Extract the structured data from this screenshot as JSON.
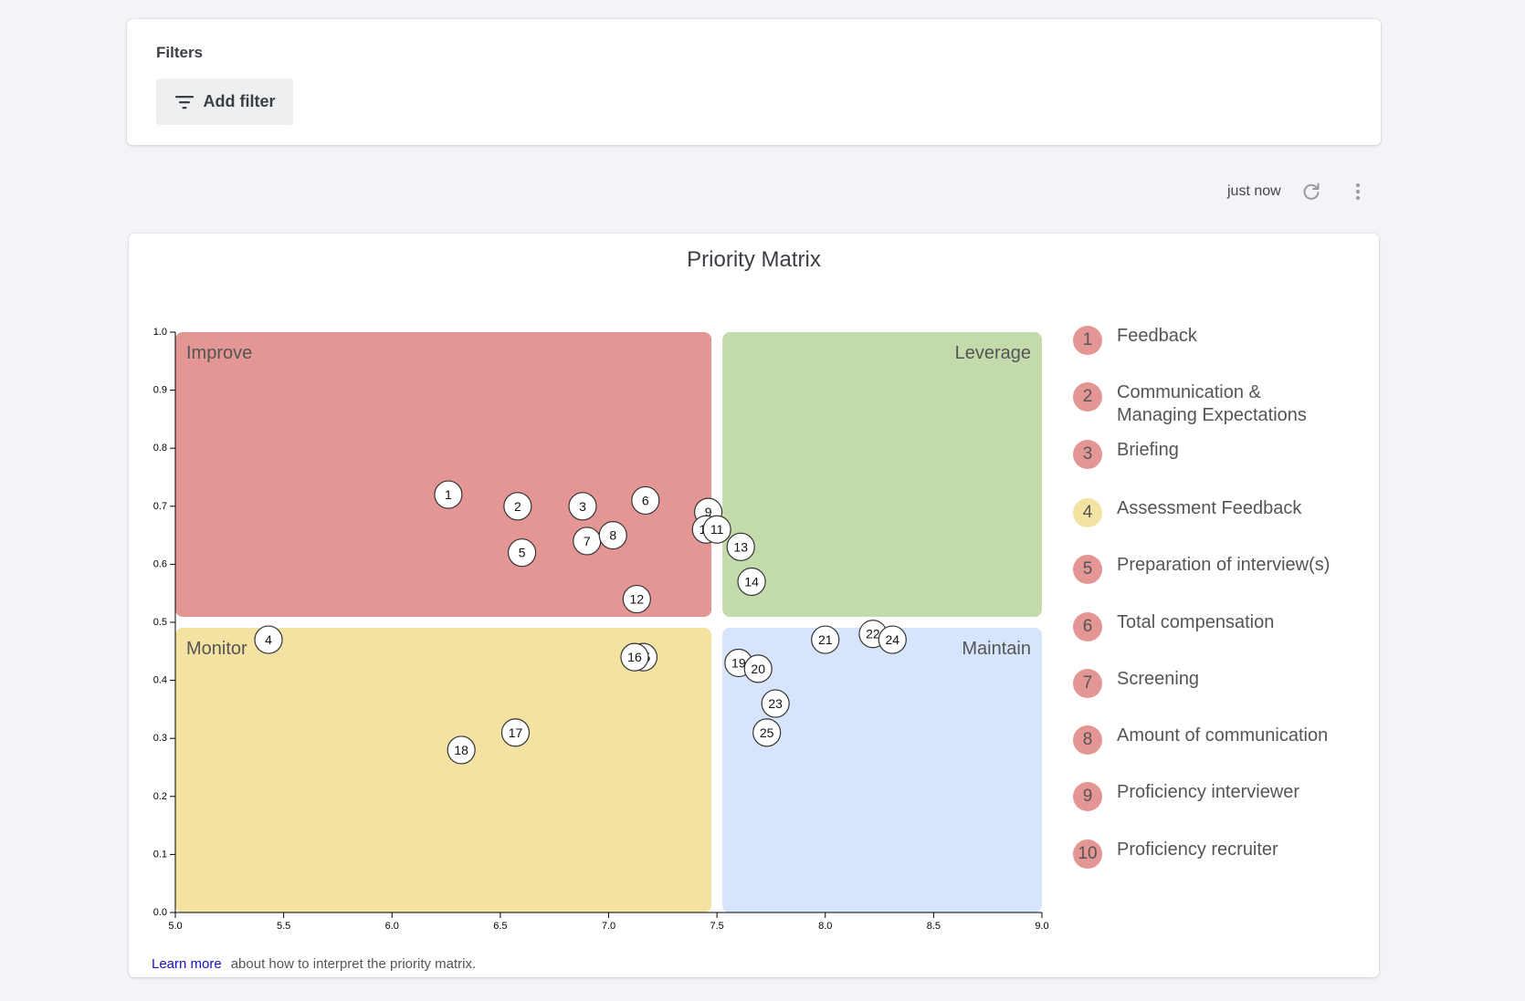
{
  "filters": {
    "title": "Filters",
    "add_filter_label": "Add filter",
    "add_filter_icon": "filter-icon"
  },
  "toolbar": {
    "timestamp": "just now",
    "refresh_icon": "refresh-icon",
    "more_icon": "more-vertical-icon"
  },
  "chart": {
    "title": "Priority Matrix",
    "footer_link": "Learn more",
    "footer_text": "about how to interpret the priority matrix."
  },
  "quadrant_colors": {
    "improve": "#e49694",
    "leverage": "#c3dbaa",
    "monitor": "#f4e2a2",
    "maintain": "#d6e5fb"
  },
  "chart_data": {
    "type": "scatter",
    "title": "Priority Matrix",
    "xlim": [
      5.0,
      9.0
    ],
    "ylim": [
      0.0,
      1.0
    ],
    "x_ticks": [
      "5.0",
      "5.5",
      "6.0",
      "6.5",
      "7.0",
      "7.5",
      "8.0",
      "8.5",
      "9.0"
    ],
    "y_ticks": [
      "0.0",
      "0.1",
      "0.2",
      "0.3",
      "0.4",
      "0.5",
      "0.6",
      "0.7",
      "0.8",
      "0.9",
      "1.0"
    ],
    "x_split": 7.5,
    "y_split": 0.5,
    "quadrants": [
      {
        "key": "improve",
        "label": "Improve"
      },
      {
        "key": "leverage",
        "label": "Leverage"
      },
      {
        "key": "monitor",
        "label": "Monitor"
      },
      {
        "key": "maintain",
        "label": "Maintain"
      }
    ],
    "points": [
      {
        "id": "1",
        "x": 6.26,
        "y": 0.72
      },
      {
        "id": "2",
        "x": 6.58,
        "y": 0.7
      },
      {
        "id": "3",
        "x": 6.88,
        "y": 0.7
      },
      {
        "id": "4",
        "x": 5.43,
        "y": 0.47
      },
      {
        "id": "5",
        "x": 6.6,
        "y": 0.62
      },
      {
        "id": "6",
        "x": 7.17,
        "y": 0.71
      },
      {
        "id": "7",
        "x": 6.9,
        "y": 0.64
      },
      {
        "id": "8",
        "x": 7.02,
        "y": 0.65
      },
      {
        "id": "9",
        "x": 7.46,
        "y": 0.69
      },
      {
        "id": "10",
        "x": 7.45,
        "y": 0.66
      },
      {
        "id": "11",
        "x": 7.5,
        "y": 0.66
      },
      {
        "id": "12",
        "x": 7.13,
        "y": 0.54
      },
      {
        "id": "13",
        "x": 7.61,
        "y": 0.63
      },
      {
        "id": "14",
        "x": 7.66,
        "y": 0.57
      },
      {
        "id": "15",
        "x": 7.16,
        "y": 0.44
      },
      {
        "id": "16",
        "x": 7.12,
        "y": 0.44
      },
      {
        "id": "17",
        "x": 6.57,
        "y": 0.31
      },
      {
        "id": "18",
        "x": 6.32,
        "y": 0.28
      },
      {
        "id": "19",
        "x": 7.6,
        "y": 0.43
      },
      {
        "id": "20",
        "x": 7.69,
        "y": 0.42
      },
      {
        "id": "21",
        "x": 8.0,
        "y": 0.47
      },
      {
        "id": "22",
        "x": 8.22,
        "y": 0.48
      },
      {
        "id": "23",
        "x": 7.77,
        "y": 0.36
      },
      {
        "id": "24",
        "x": 8.31,
        "y": 0.47
      },
      {
        "id": "25",
        "x": 7.73,
        "y": 0.31
      }
    ],
    "legend": [
      {
        "num": "1",
        "label": "Feedback",
        "color": "#e49694"
      },
      {
        "num": "2",
        "label": "Communication & Managing Expectations",
        "color": "#e49694"
      },
      {
        "num": "3",
        "label": "Briefing",
        "color": "#e49694"
      },
      {
        "num": "4",
        "label": "Assessment Feedback",
        "color": "#f4e2a2"
      },
      {
        "num": "5",
        "label": "Preparation of interview(s)",
        "color": "#e49694"
      },
      {
        "num": "6",
        "label": "Total compensation",
        "color": "#e49694"
      },
      {
        "num": "7",
        "label": "Screening",
        "color": "#e49694"
      },
      {
        "num": "8",
        "label": "Amount of communication",
        "color": "#e49694"
      },
      {
        "num": "9",
        "label": "Proficiency interviewer",
        "color": "#e49694"
      },
      {
        "num": "10",
        "label": "Proficiency recruiter",
        "color": "#e49694"
      }
    ]
  }
}
